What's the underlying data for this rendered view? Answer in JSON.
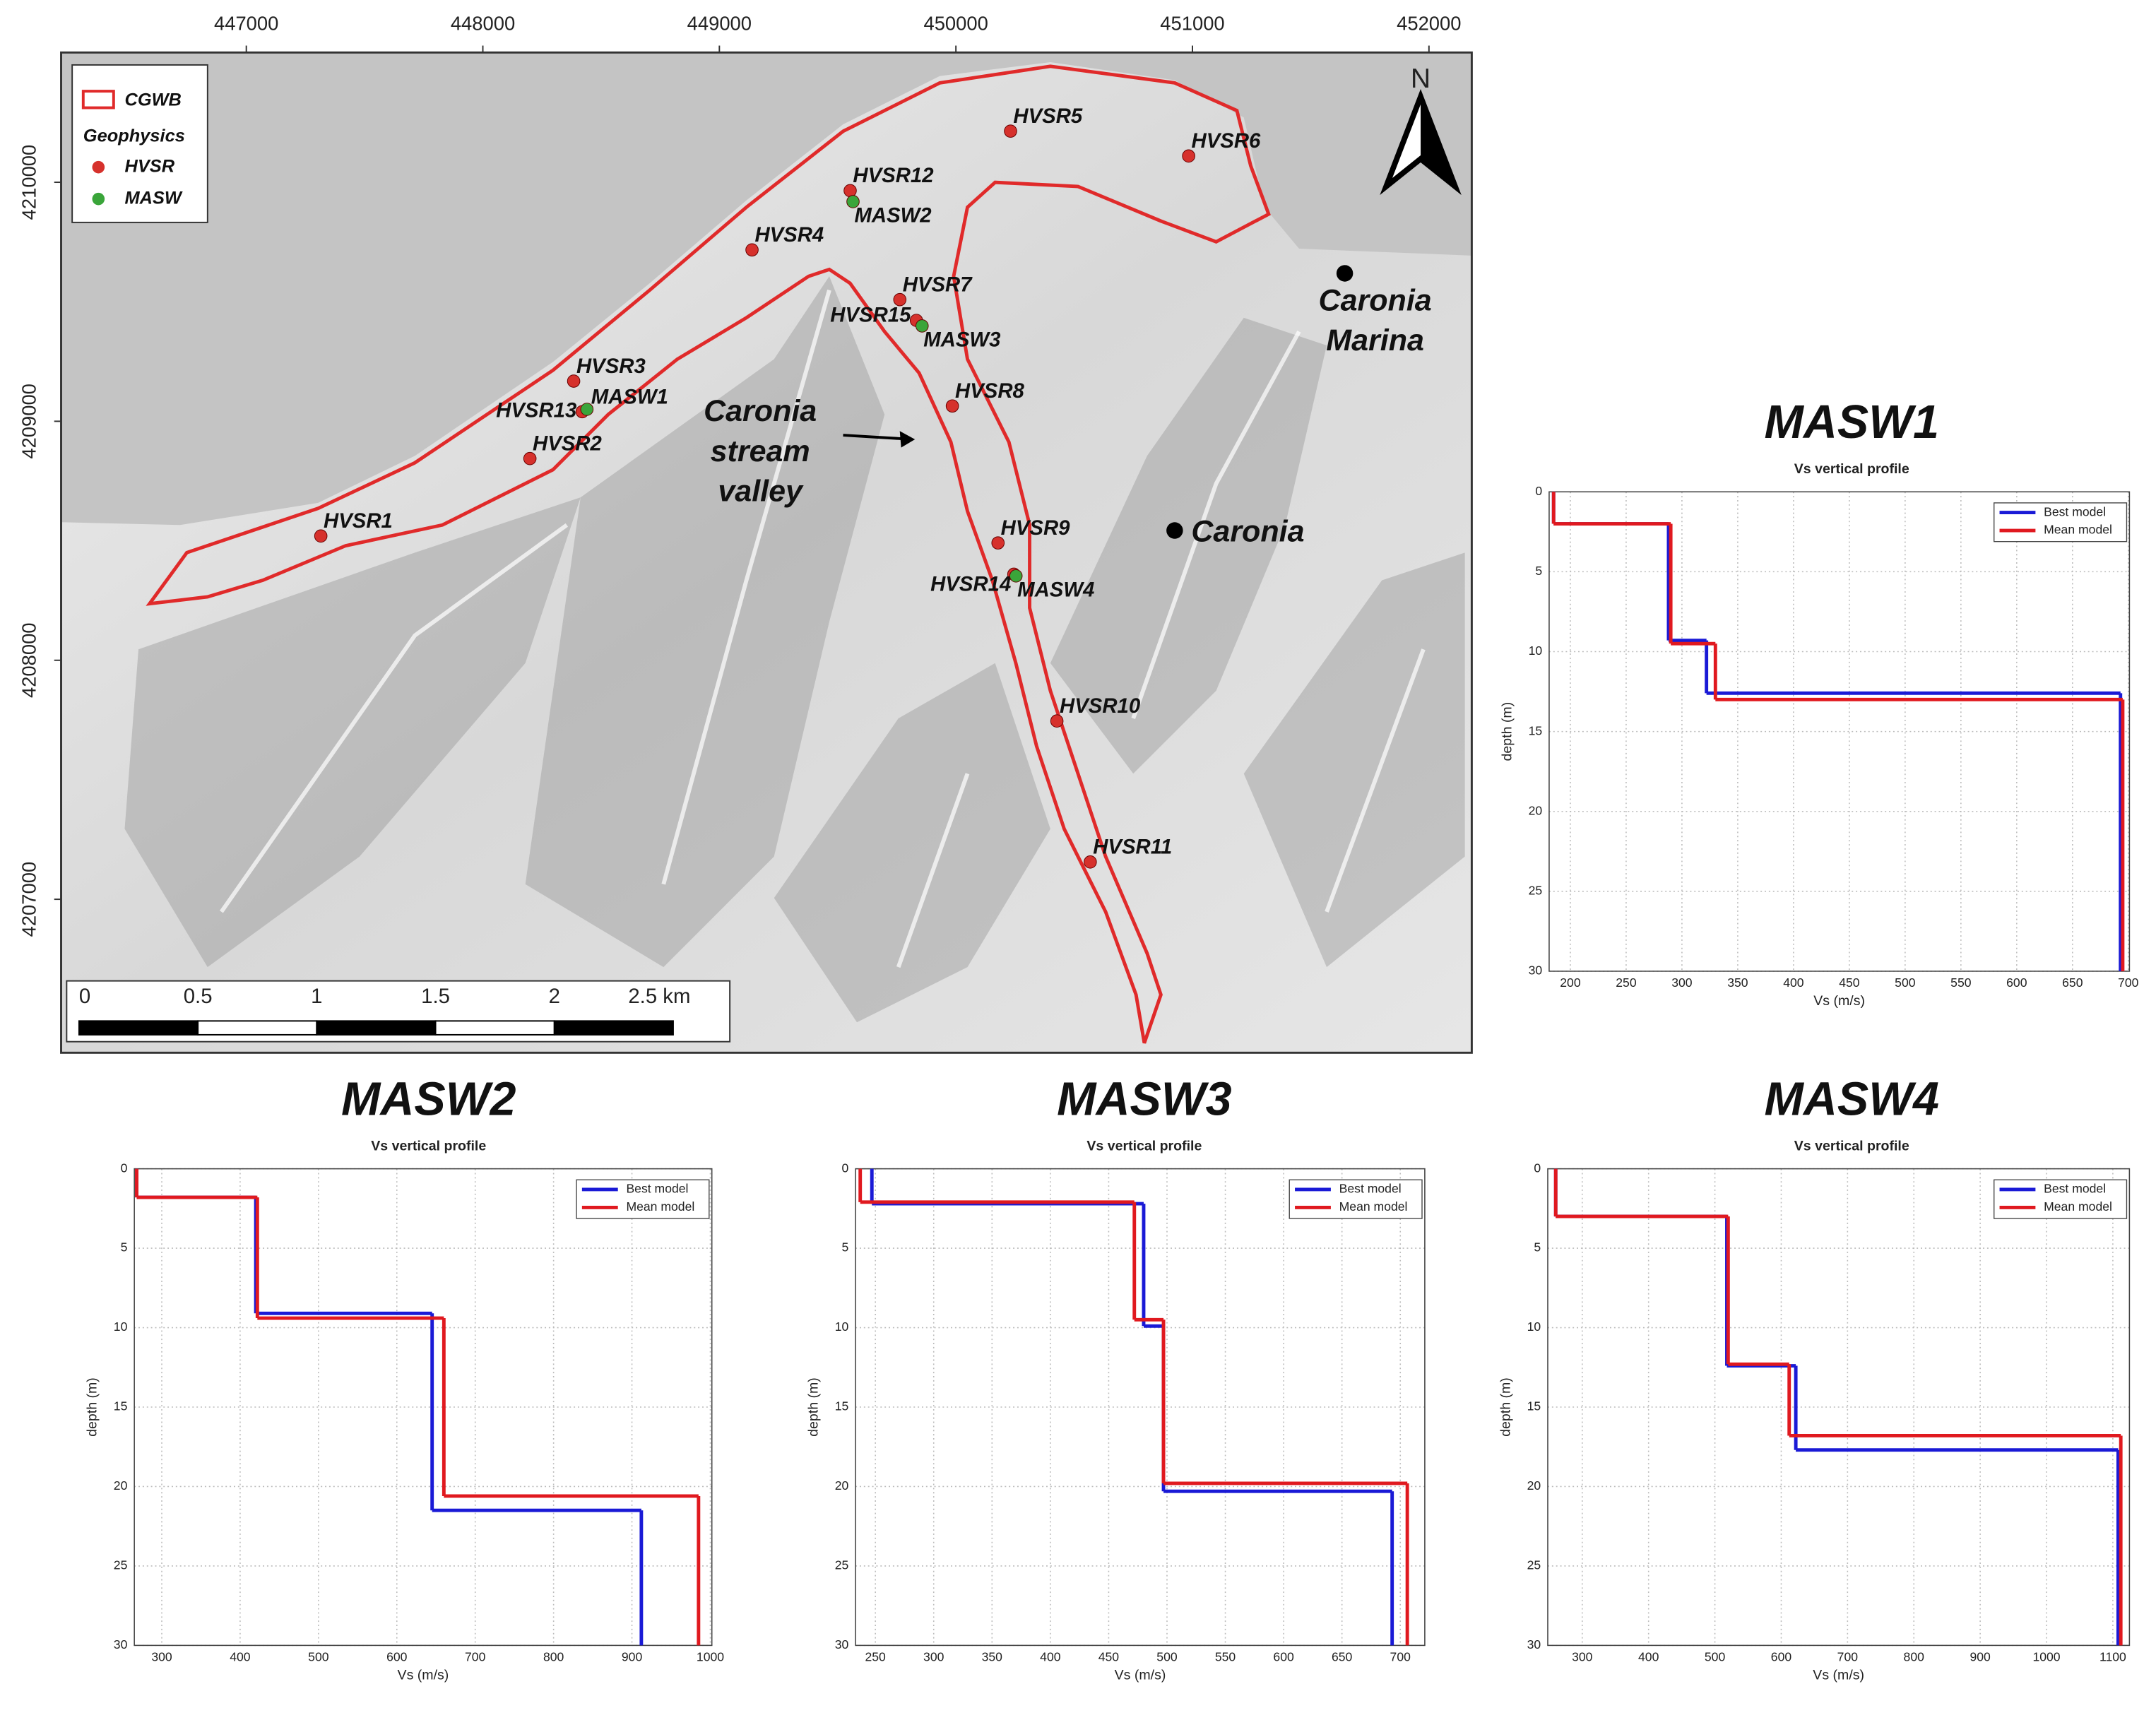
{
  "chart_data": [
    {
      "type": "map",
      "xlim": [
        446217,
        452181
      ],
      "ylim": [
        4206358,
        4210543
      ],
      "xticks": [
        447000,
        448000,
        449000,
        450000,
        451000,
        452000
      ],
      "yticks": [
        4207000,
        4208000,
        4209000,
        4210000
      ],
      "boundary_label": "CGWB",
      "legend_heading": "Geophysics",
      "series": [
        {
          "name": "HVSR",
          "color": "#d6312c",
          "labels": [
            "HVSR1",
            "HVSR2",
            "HVSR3",
            "HVSR4",
            "HVSR5",
            "HVSR6",
            "HVSR7",
            "HVSR8",
            "HVSR9",
            "HVSR10",
            "HVSR11",
            "HVSR12",
            "HVSR13",
            "HVSR14",
            "HVSR15"
          ],
          "x": [
            447315,
            448199,
            448384,
            449138,
            450231,
            450984,
            449763,
            449985,
            450178,
            450427,
            450568,
            449553,
            448420,
            450245,
            449833
          ],
          "values": [
            4208520,
            4208844,
            4209168,
            4209717,
            4210214,
            4210110,
            4209509,
            4209064,
            4208491,
            4207746,
            4207156,
            4209965,
            4209040,
            4208360,
            4209422
          ]
        },
        {
          "name": "MASW",
          "color": "#3aa53a",
          "labels": [
            "MASW1",
            "MASW2",
            "MASW3",
            "MASW4"
          ],
          "x": [
            448440,
            449565,
            449857,
            450254
          ],
          "values": [
            4209050,
            4209919,
            4209399,
            4208353
          ]
        }
      ],
      "places": [
        {
          "label": [
            "Caronia",
            "Marina"
          ],
          "x": 451644,
          "y": 4209619
        },
        {
          "label": [
            "Caronia"
          ],
          "x": 450925,
          "y": 4208543
        }
      ],
      "annotation": [
        "Caronia",
        "stream",
        "valley"
      ],
      "scale_labels": [
        "0",
        "0.5",
        "1",
        "1.5",
        "2",
        "2.5 km"
      ],
      "north": "N"
    },
    {
      "type": "step",
      "title": "MASW1",
      "subtitle": "Vs vertical profile",
      "xlabel": "Vs (m/s)",
      "ylabel": "depth (m)",
      "xlim": [
        181,
        701
      ],
      "xticks": [
        200,
        250,
        300,
        350,
        400,
        450,
        500,
        550,
        600,
        650,
        700
      ],
      "ylim": [
        0,
        30
      ],
      "yticks": [
        0,
        5,
        10,
        15,
        20,
        25,
        30
      ],
      "invert_y": true,
      "grid": true,
      "series": [
        {
          "name": "Best model",
          "color": "#1a1ad6",
          "values": [
            185,
            288,
            322,
            693
          ],
          "tops": [
            0,
            2,
            9.3,
            12.6
          ]
        },
        {
          "name": "Mean model",
          "color": "#e0191f",
          "values": [
            185,
            290,
            330,
            695
          ],
          "tops": [
            0,
            2,
            9.5,
            13
          ]
        }
      ]
    },
    {
      "type": "step",
      "title": "MASW2",
      "subtitle": "Vs vertical profile",
      "xlabel": "Vs (m/s)",
      "ylabel": "depth (m)",
      "xlim": [
        265,
        1002
      ],
      "xticks": [
        300,
        400,
        500,
        600,
        700,
        800,
        900,
        1000
      ],
      "ylim": [
        0,
        30
      ],
      "yticks": [
        0,
        5,
        10,
        15,
        20,
        25,
        30
      ],
      "invert_y": true,
      "grid": true,
      "series": [
        {
          "name": "Best model",
          "color": "#1a1ad6",
          "values": [
            268,
            420,
            645,
            912
          ],
          "tops": [
            0,
            1.8,
            9.1,
            21.5
          ]
        },
        {
          "name": "Mean model",
          "color": "#e0191f",
          "values": [
            268,
            422,
            660,
            985
          ],
          "tops": [
            0,
            1.8,
            9.4,
            20.6
          ]
        }
      ]
    },
    {
      "type": "step",
      "title": "MASW3",
      "subtitle": "Vs vertical profile",
      "xlabel": "Vs (m/s)",
      "ylabel": "depth (m)",
      "xlim": [
        233,
        721
      ],
      "xticks": [
        250,
        300,
        350,
        400,
        450,
        500,
        550,
        600,
        650,
        700
      ],
      "ylim": [
        0,
        30
      ],
      "yticks": [
        0,
        5,
        10,
        15,
        20,
        25,
        30
      ],
      "invert_y": true,
      "grid": true,
      "series": [
        {
          "name": "Best model",
          "color": "#1a1ad6",
          "values": [
            247,
            480,
            497,
            693
          ],
          "tops": [
            0,
            2.2,
            9.9,
            20.3
          ]
        },
        {
          "name": "Mean model",
          "color": "#e0191f",
          "values": [
            237,
            472,
            497,
            706
          ],
          "tops": [
            0,
            2.1,
            9.5,
            19.8
          ]
        }
      ]
    },
    {
      "type": "step",
      "title": "MASW4",
      "subtitle": "Vs vertical profile",
      "xlabel": "Vs (m/s)",
      "ylabel": "depth (m)",
      "xlim": [
        248,
        1125
      ],
      "xticks": [
        300,
        400,
        500,
        600,
        700,
        800,
        900,
        1000,
        1100
      ],
      "ylim": [
        0,
        30
      ],
      "yticks": [
        0,
        5,
        10,
        15,
        20,
        25,
        30
      ],
      "invert_y": true,
      "grid": true,
      "series": [
        {
          "name": "Best model",
          "color": "#1a1ad6",
          "values": [
            260,
            518,
            622,
            1108
          ],
          "tops": [
            0,
            3.0,
            12.4,
            17.7
          ]
        },
        {
          "name": "Mean model",
          "color": "#e0191f",
          "values": [
            260,
            520,
            612,
            1112
          ],
          "tops": [
            0,
            3.0,
            12.3,
            16.8
          ]
        }
      ]
    }
  ]
}
